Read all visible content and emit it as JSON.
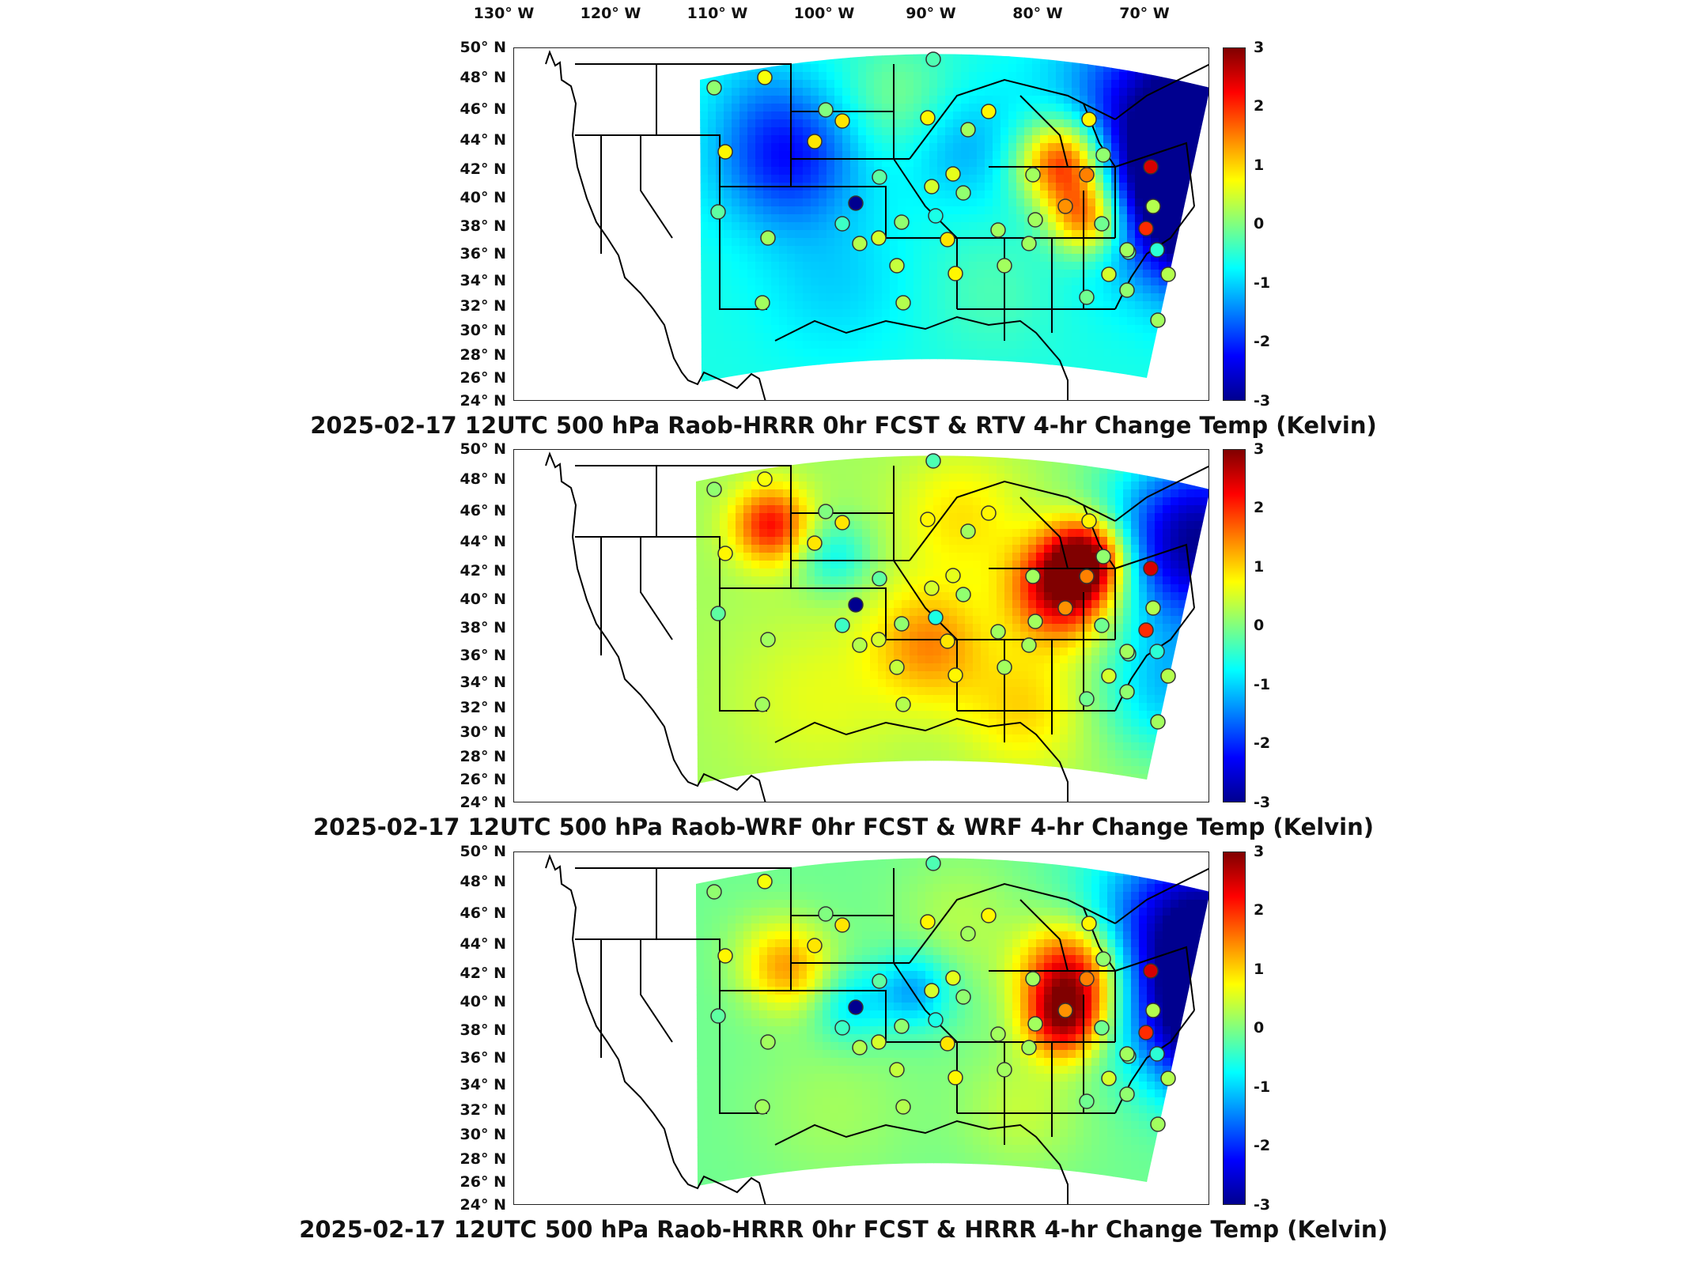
{
  "longitude_labels": [
    "130° W",
    "120° W",
    "110° W",
    "100° W",
    "90° W",
    "80° W",
    "70° W"
  ],
  "latitude_labels": [
    "50° N",
    "48° N",
    "46° N",
    "44° N",
    "42° N",
    "40° N",
    "38° N",
    "36° N",
    "34° N",
    "32° N",
    "30° N",
    "28° N",
    "26° N",
    "24° N"
  ],
  "colorbar": {
    "ticks": [
      "3",
      "2",
      "1",
      "0",
      "-1",
      "-2",
      "-3"
    ],
    "range": [
      -3,
      3
    ],
    "colormap": "jet"
  },
  "panels": [
    {
      "caption": "2025-02-17 12UTC 500 hPa Raob-HRRR 0hr FCST & RTV 4-hr Change Temp (Kelvin)",
      "field": "rtv"
    },
    {
      "caption": "2025-02-17 12UTC 500 hPa Raob-WRF 0hr FCST & WRF 4-hr Change Temp (Kelvin)",
      "field": "wrf"
    },
    {
      "caption": "2025-02-17 12UTC 500 hPa Raob-HRRR 0hr FCST & HRRR 4-hr Change Temp (Kelvin)",
      "field": "hrrr"
    }
  ],
  "colors": {
    "warm_max": "#800000",
    "cold_max": "#00008f",
    "neutral": "#80ff80"
  }
}
